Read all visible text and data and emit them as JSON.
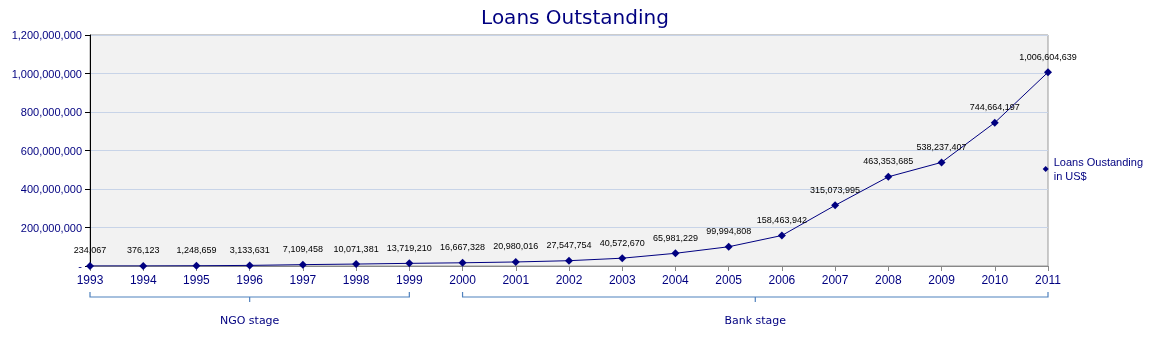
{
  "chart_data": {
    "type": "line",
    "title": "Loans Outstanding",
    "categories": [
      "1993",
      "1994",
      "1995",
      "1996",
      "1997",
      "1998",
      "1999",
      "2000",
      "2001",
      "2002",
      "2003",
      "2004",
      "2005",
      "2006",
      "2007",
      "2008",
      "2009",
      "2010",
      "2011"
    ],
    "series": [
      {
        "name": "Loans Oustanding in US$",
        "color": "#000080",
        "values": [
          234067,
          376123,
          1248659,
          3133631,
          7109458,
          10071381,
          13719210,
          16667328,
          20980016,
          27547754,
          40572670,
          65981229,
          99994808,
          158463942,
          315073995,
          463353685,
          538237407,
          744664197,
          1006604639
        ]
      }
    ],
    "ylim": [
      0,
      1200000000
    ],
    "yticks": [
      {
        "value": 0,
        "label": "-"
      },
      {
        "value": 200000000,
        "label": "200,000,000"
      },
      {
        "value": 400000000,
        "label": "400,000,000"
      },
      {
        "value": 600000000,
        "label": "600,000,000"
      },
      {
        "value": 800000000,
        "label": "800,000,000"
      },
      {
        "value": 1000000000,
        "label": "1,000,000,000"
      },
      {
        "value": 1200000000,
        "label": "1,200,000,000"
      }
    ],
    "annotations": [
      "NGO stage",
      "Bank stage"
    ],
    "value_labels": [
      "234,067",
      "376,123",
      "1,248,659",
      "3,133,631",
      "7,109,458",
      "10,071,381",
      "13,719,210",
      "16,667,328",
      "20,980,016",
      "27,547,754",
      "40,572,670",
      "65,981,229",
      "99,994,808",
      "158,463,942",
      "315,073,995",
      "463,353,685",
      "538,237,407",
      "744,664,197",
      "1,006,604,639"
    ],
    "grid": "y",
    "legend": "right",
    "marker": "diamond",
    "line_style": "solid"
  }
}
